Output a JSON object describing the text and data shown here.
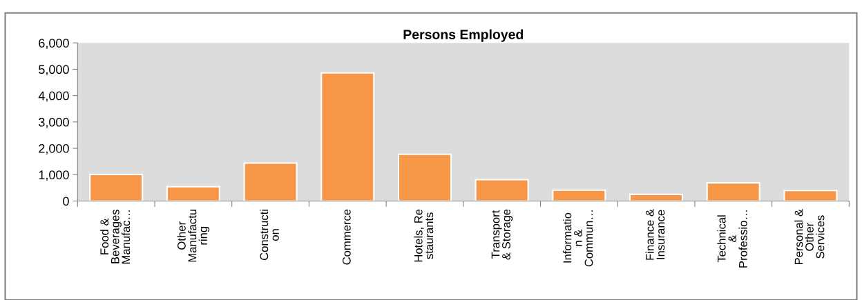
{
  "chart_data": {
    "type": "bar",
    "title": "Persons Employed",
    "categories": [
      "Food &\nBeverages\nManufac…",
      "Other\nManufactu\nring",
      "Constructi\non",
      "Commerce",
      "Hotels, Re\nstaurants",
      "Transport\n& Storage",
      "Informatio\nn &\nCommun…",
      "Finance &\nInsurance",
      "Technical\n&\nProfessio…",
      "Personal &\nOther\nServices"
    ],
    "values": [
      1010,
      540,
      1440,
      4860,
      1770,
      810,
      410,
      250,
      690,
      400
    ],
    "color": "#f79646",
    "ylim": [
      0,
      6000
    ],
    "yticks": [
      {
        "value": 0,
        "label": "0"
      },
      {
        "value": 1000,
        "label": "1,000"
      },
      {
        "value": 2000,
        "label": "2,000"
      },
      {
        "value": 3000,
        "label": "3,000"
      },
      {
        "value": 4000,
        "label": "4,000"
      },
      {
        "value": 5000,
        "label": "5,000"
      },
      {
        "value": 6000,
        "label": "6,000"
      }
    ],
    "grid": false,
    "legend": false
  }
}
